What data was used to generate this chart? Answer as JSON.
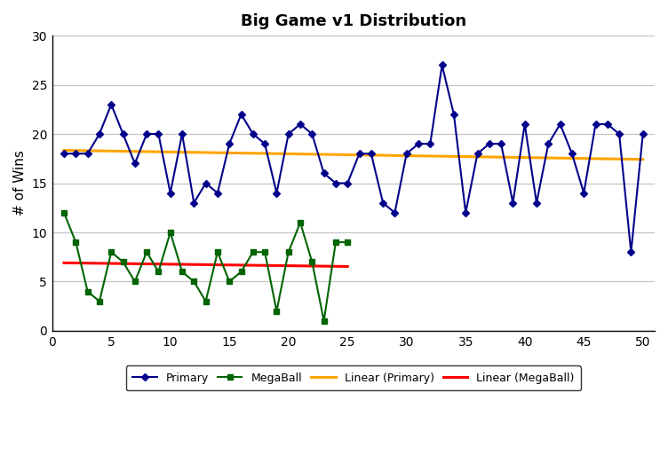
{
  "title": "Big Game v1 Distribution",
  "ylabel": "# of Wins",
  "xlabel": "",
  "ylim": [
    0,
    30
  ],
  "xlim": [
    0,
    51
  ],
  "yticks": [
    0,
    5,
    10,
    15,
    20,
    25,
    30
  ],
  "xticks": [
    0,
    5,
    10,
    15,
    20,
    25,
    30,
    35,
    40,
    45,
    50
  ],
  "primary_x": [
    1,
    2,
    3,
    4,
    5,
    6,
    7,
    8,
    9,
    10,
    11,
    12,
    13,
    14,
    15,
    16,
    17,
    18,
    19,
    20,
    21,
    22,
    23,
    24,
    25,
    26,
    27,
    28,
    29,
    30,
    31,
    32,
    33,
    34,
    35,
    36,
    37,
    38,
    39,
    40,
    41,
    42,
    43,
    44,
    45,
    46,
    47,
    48,
    49,
    50
  ],
  "primary_y": [
    18,
    18,
    18,
    20,
    23,
    20,
    17,
    20,
    20,
    14,
    20,
    13,
    15,
    14,
    19,
    22,
    20,
    19,
    14,
    20,
    21,
    20,
    16,
    15,
    15,
    18,
    18,
    13,
    12,
    18,
    19,
    19,
    27,
    22,
    12,
    18,
    19,
    19,
    13,
    21,
    13,
    19,
    21,
    18,
    14,
    21,
    21,
    20,
    8,
    20
  ],
  "megaball_x": [
    1,
    2,
    3,
    4,
    5,
    6,
    7,
    8,
    9,
    10,
    11,
    12,
    13,
    14,
    15,
    16,
    17,
    18,
    19,
    20,
    21,
    22,
    23,
    24,
    25
  ],
  "megaball_y": [
    12,
    9,
    4,
    3,
    8,
    7,
    5,
    8,
    6,
    10,
    6,
    5,
    3,
    8,
    5,
    6,
    8,
    8,
    2,
    8,
    11,
    7,
    1,
    9,
    9
  ],
  "primary_color": "#00008B",
  "megaball_color": "#006400",
  "linear_primary_color": "#FFA500",
  "linear_megaball_color": "#FF0000",
  "background_color": "#FFFFFF",
  "title_fontsize": 13,
  "legend_labels": [
    "Primary",
    "MegaBall",
    "Linear (Primary)",
    "Linear (MegaBall)"
  ],
  "linear_primary_start": 18.5,
  "linear_primary_end": 16.0,
  "linear_megaball_start": 6.0,
  "linear_megaball_end": 7.3
}
